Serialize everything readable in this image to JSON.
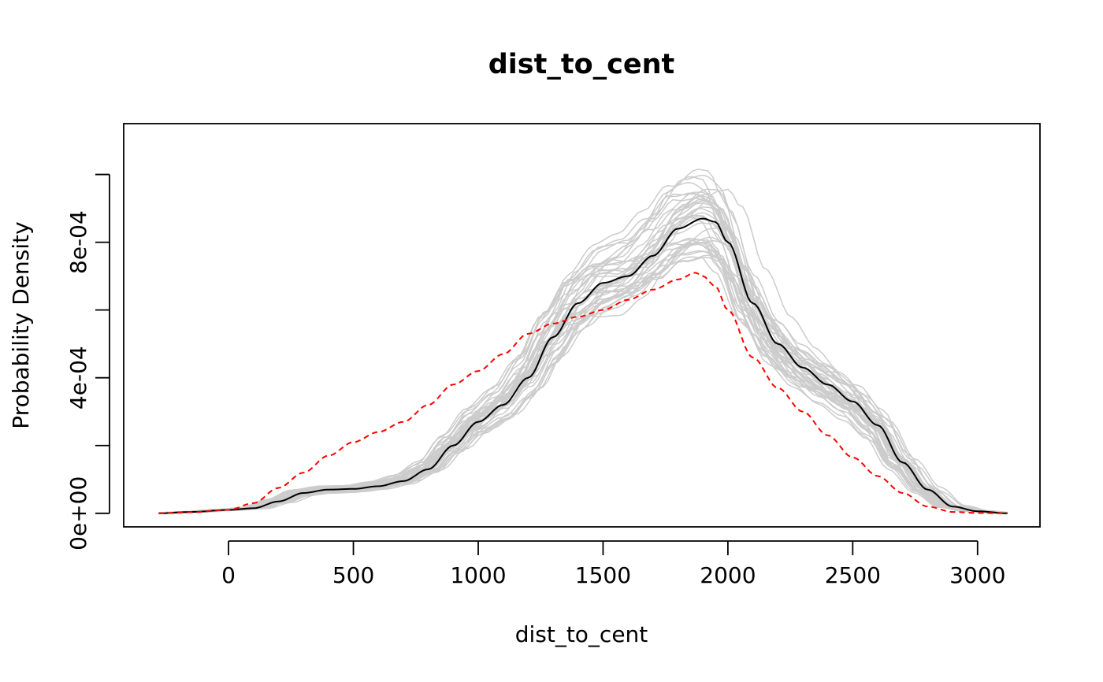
{
  "chart_data": {
    "type": "line",
    "title": "dist_to_cent",
    "xlabel": "dist_to_cent",
    "ylabel": "Probability Density",
    "xlim": [
      -420,
      3250
    ],
    "ylim": [
      -4e-05,
      0.00115
    ],
    "x_ticks": [
      0,
      500,
      1000,
      1500,
      2000,
      2500,
      3000
    ],
    "x_tick_labels": [
      "0",
      "500",
      "1000",
      "1500",
      "2000",
      "2500",
      "3000"
    ],
    "y_ticks": [
      0,
      0.0002,
      0.0004,
      0.0006,
      0.0008,
      0.001
    ],
    "y_tick_labels": [
      "0e+00",
      "",
      "4e-04",
      "",
      "8e-04",
      ""
    ],
    "grid": false,
    "legend": "none",
    "colors": {
      "simulated": "#cccccc",
      "mean": "#000000",
      "observed": "#ff0000"
    },
    "simulated_count": 40,
    "series": [
      {
        "role": "mean",
        "style": "solid",
        "x": [
          -280,
          -150,
          0,
          100,
          200,
          300,
          400,
          500,
          600,
          700,
          800,
          900,
          1000,
          1100,
          1200,
          1300,
          1400,
          1500,
          1600,
          1700,
          1800,
          1900,
          1950,
          2000,
          2100,
          2200,
          2300,
          2400,
          2500,
          2600,
          2700,
          2800,
          2900,
          3000,
          3120
        ],
        "y": [
          0,
          4e-06,
          1e-05,
          1.5e-05,
          3.5e-05,
          6e-05,
          7e-05,
          7.2e-05,
          8e-05,
          9.5e-05,
          0.00013,
          0.0002,
          0.00027,
          0.00032,
          0.0004,
          0.00052,
          0.00062,
          0.00068,
          0.0007,
          0.00076,
          0.00084,
          0.00087,
          0.00086,
          0.0008,
          0.00062,
          0.0005,
          0.00043,
          0.00038,
          0.00033,
          0.00026,
          0.00015,
          7e-05,
          2e-05,
          6e-06,
          0
        ]
      },
      {
        "role": "observed",
        "style": "dashed",
        "x": [
          -280,
          -150,
          0,
          100,
          200,
          300,
          400,
          500,
          600,
          700,
          800,
          900,
          1000,
          1100,
          1200,
          1300,
          1400,
          1500,
          1600,
          1700,
          1800,
          1870,
          1900,
          1950,
          2000,
          2100,
          2200,
          2300,
          2400,
          2500,
          2600,
          2700,
          2800,
          2900,
          3000,
          3120
        ],
        "y": [
          0,
          3e-06,
          1e-05,
          3e-05,
          7.5e-05,
          0.00012,
          0.00017,
          0.00021,
          0.00024,
          0.00027,
          0.00032,
          0.00038,
          0.00042,
          0.00047,
          0.00053,
          0.00056,
          0.00058,
          0.0006,
          0.00063,
          0.00066,
          0.00069,
          0.00071,
          0.0007,
          0.00067,
          0.0006,
          0.00046,
          0.00037,
          0.0003,
          0.00023,
          0.000165,
          0.00011,
          6e-05,
          2e-05,
          4e-06,
          1e-06,
          0
        ]
      }
    ]
  }
}
